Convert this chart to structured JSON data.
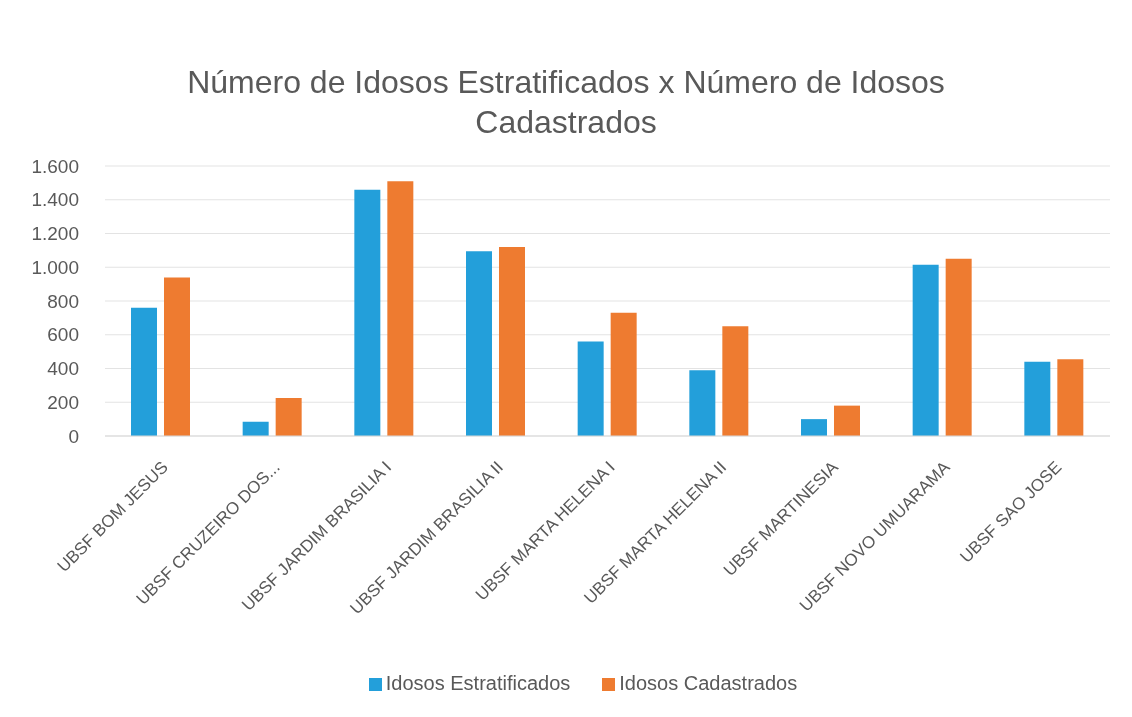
{
  "chart_data": {
    "type": "bar",
    "title": "Número de Idosos Estratificados x Número de Idosos Cadastrados",
    "categories": [
      "UBSF BOM JESUS",
      "UBSF CRUZEIRO DOS...",
      "UBSF JARDIM BRASILIA I",
      "UBSF JARDIM BRASILIA II",
      "UBSF MARTA HELENA I",
      "UBSF MARTA HELENA II",
      "UBSF MARTINESIA",
      "UBSF NOVO UMUARAMA",
      "UBSF SAO JOSE"
    ],
    "series": [
      {
        "name": "Idosos Estratificados",
        "color": "#239fda",
        "values": [
          760,
          85,
          1460,
          1095,
          560,
          390,
          100,
          1015,
          440
        ]
      },
      {
        "name": "Idosos Cadastrados",
        "color": "#ee7b30",
        "values": [
          940,
          225,
          1510,
          1120,
          730,
          650,
          180,
          1050,
          455
        ]
      }
    ],
    "ylim": [
      0,
      1600
    ],
    "yticks": [
      0,
      200,
      400,
      600,
      800,
      {
        "value": 1000,
        "label": "1.000"
      },
      {
        "value": 1200,
        "label": "1.200"
      },
      {
        "value": 1400,
        "label": "1.400"
      },
      {
        "value": 1600,
        "label": "1.600"
      }
    ],
    "grid": "y",
    "legend": "bottom"
  }
}
